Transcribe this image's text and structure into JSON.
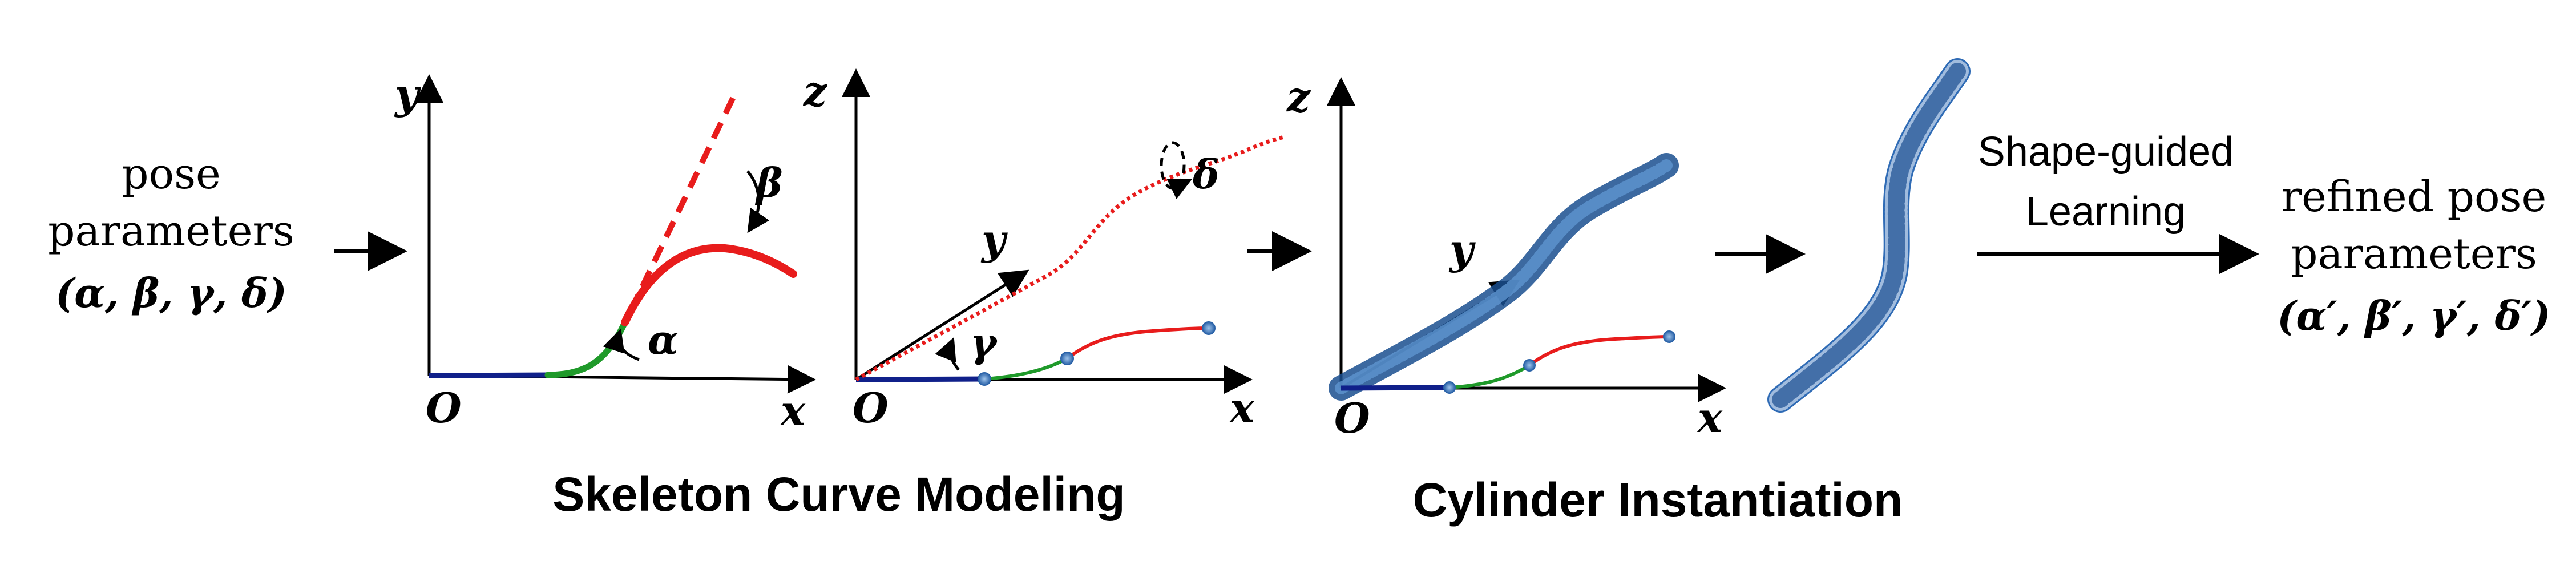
{
  "input": {
    "line1": "pose",
    "line2": "parameters",
    "line3": "(α, β, γ, δ)"
  },
  "panel1": {
    "y_label": "y",
    "x_label": "x",
    "origin_label": "O",
    "alpha": "α",
    "beta": "β"
  },
  "panel2": {
    "z_label": "z",
    "y_label": "y",
    "x_label": "x",
    "origin_label": "O",
    "gamma": "γ",
    "delta": "δ"
  },
  "panel3": {
    "z_label": "z",
    "y_label": "y",
    "x_label": "x",
    "origin_label": "O"
  },
  "titles": {
    "skeleton": "Skeleton Curve Modeling",
    "cylinder": "Cylinder Instantiation"
  },
  "learning": {
    "line1": "Shape-guided",
    "line2": "Learning"
  },
  "output": {
    "line1": "refined pose",
    "line2": "parameters",
    "line3": "(α′, β′, γ′, δ′)"
  },
  "colors": {
    "red": "#e81c1c",
    "green": "#1f9a2a",
    "navy": "#10208a",
    "blue_dots": "#1e5aa8"
  }
}
